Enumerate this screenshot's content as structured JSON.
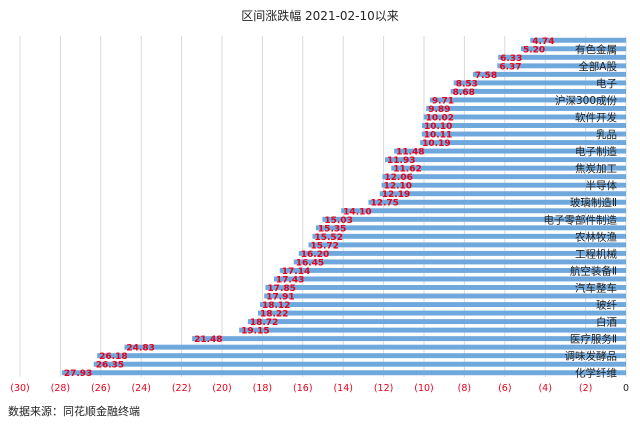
{
  "chart_data": {
    "type": "bar",
    "orientation": "horizontal",
    "title": "区间涨跌幅 2021-02-10以来",
    "xlim": [
      -30,
      0
    ],
    "x_ticks": [
      -30,
      -28,
      -26,
      -24,
      -22,
      -20,
      -18,
      -16,
      -14,
      -12,
      -10,
      -8,
      -6,
      -4,
      -2,
      0
    ],
    "x_tick_labels": [
      "(30)",
      "(28)",
      "(26)",
      "(24)",
      "(22)",
      "(20)",
      "(18)",
      "(16)",
      "(14)",
      "(12)",
      "(10)",
      "(8)",
      "(6)",
      "(4)",
      "(2)",
      "0"
    ],
    "grid": "vertical",
    "label_color": "#e8001c",
    "bar_color": "#6fa8dc",
    "categories": [
      "",
      "有色金属",
      "",
      "全部A股",
      "",
      "电子",
      "",
      "沪深300成份",
      "",
      "软件开发",
      "",
      "乳品",
      "",
      "电子制造",
      "",
      "焦炭加工",
      "",
      "半导体",
      "",
      "玻璃制造Ⅱ",
      "",
      "电子零部件制造",
      "",
      "农林牧渔",
      "",
      "工程机械",
      "",
      "航空装备Ⅱ",
      "",
      "汽车整车",
      "",
      "玻纤",
      "",
      "白酒",
      "",
      "医疗服务Ⅱ",
      "",
      "调味发酵品",
      "",
      "化学纤维"
    ],
    "values": [
      -4.74,
      -5.2,
      -6.33,
      -6.37,
      -7.58,
      -8.53,
      -8.68,
      -9.71,
      -9.89,
      -10.02,
      -10.1,
      -10.11,
      -10.19,
      -11.48,
      -11.93,
      -11.62,
      -12.06,
      -12.1,
      -12.19,
      -12.75,
      -14.1,
      -15.03,
      -15.35,
      -15.52,
      -15.72,
      -16.2,
      -16.45,
      -17.14,
      -17.43,
      -17.85,
      -17.91,
      -18.12,
      -18.22,
      -18.72,
      -19.15,
      -21.48,
      -24.83,
      -26.18,
      -26.35,
      -27.93
    ],
    "data_labels": [
      "4.74",
      "5.20",
      "6.33",
      "6.37",
      "7.58",
      "8.53",
      "8.68",
      "9.71",
      "9.89",
      "10.02",
      "10.10",
      "10.11",
      "10.19",
      "11.48",
      "11.93",
      "11.62",
      "12.06",
      "12.10",
      "12.19",
      "12.75",
      "14.10",
      "15.03",
      "15.35",
      "15.52",
      "15.72",
      "16.20",
      "16.45",
      "17.14",
      "17.43",
      "17.85",
      "17.91",
      "18.12",
      "18.22",
      "18.72",
      "19.15",
      "21.48",
      "24.83",
      "26.18",
      "26.35",
      "27.93"
    ]
  },
  "source_text": "数据来源：同花顺金融终端"
}
